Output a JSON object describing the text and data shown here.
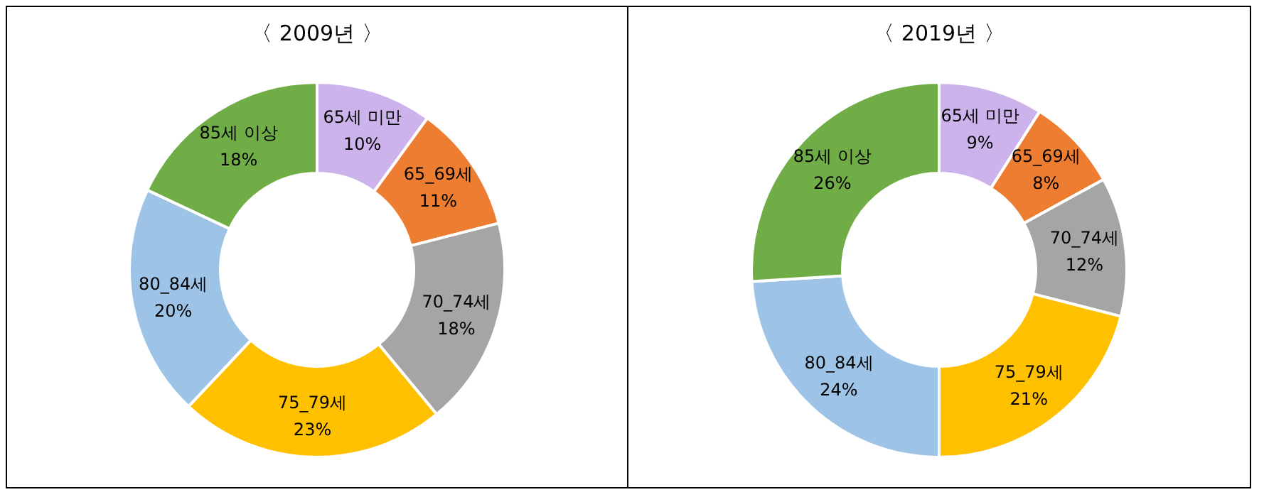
{
  "chart_data": [
    {
      "type": "donut",
      "title": "〈 2009년 〉",
      "categories": [
        "65세 미만",
        "65_69세",
        "70_74세",
        "75_79세",
        "80_84세",
        "85세 이상"
      ],
      "values": [
        10,
        11,
        18,
        23,
        20,
        18
      ],
      "value_labels": [
        "10%",
        "11%",
        "18%",
        "23%",
        "20%",
        "18%"
      ],
      "colors": [
        "#ccb3ec",
        "#ed7d31",
        "#a5a5a5",
        "#ffc000",
        "#9dc3e6",
        "#70ad47"
      ]
    },
    {
      "type": "donut",
      "title": "〈 2019년 〉",
      "categories": [
        "65세 미만",
        "65_69세",
        "70_74세",
        "75_79세",
        "80_84세",
        "85세 이상"
      ],
      "values": [
        9,
        8,
        12,
        21,
        24,
        26
      ],
      "value_labels": [
        "9%",
        "8%",
        "12%",
        "21%",
        "24%",
        "26%"
      ],
      "colors": [
        "#ccb3ec",
        "#ed7d31",
        "#a5a5a5",
        "#ffc000",
        "#9dc3e6",
        "#70ad47"
      ]
    }
  ]
}
